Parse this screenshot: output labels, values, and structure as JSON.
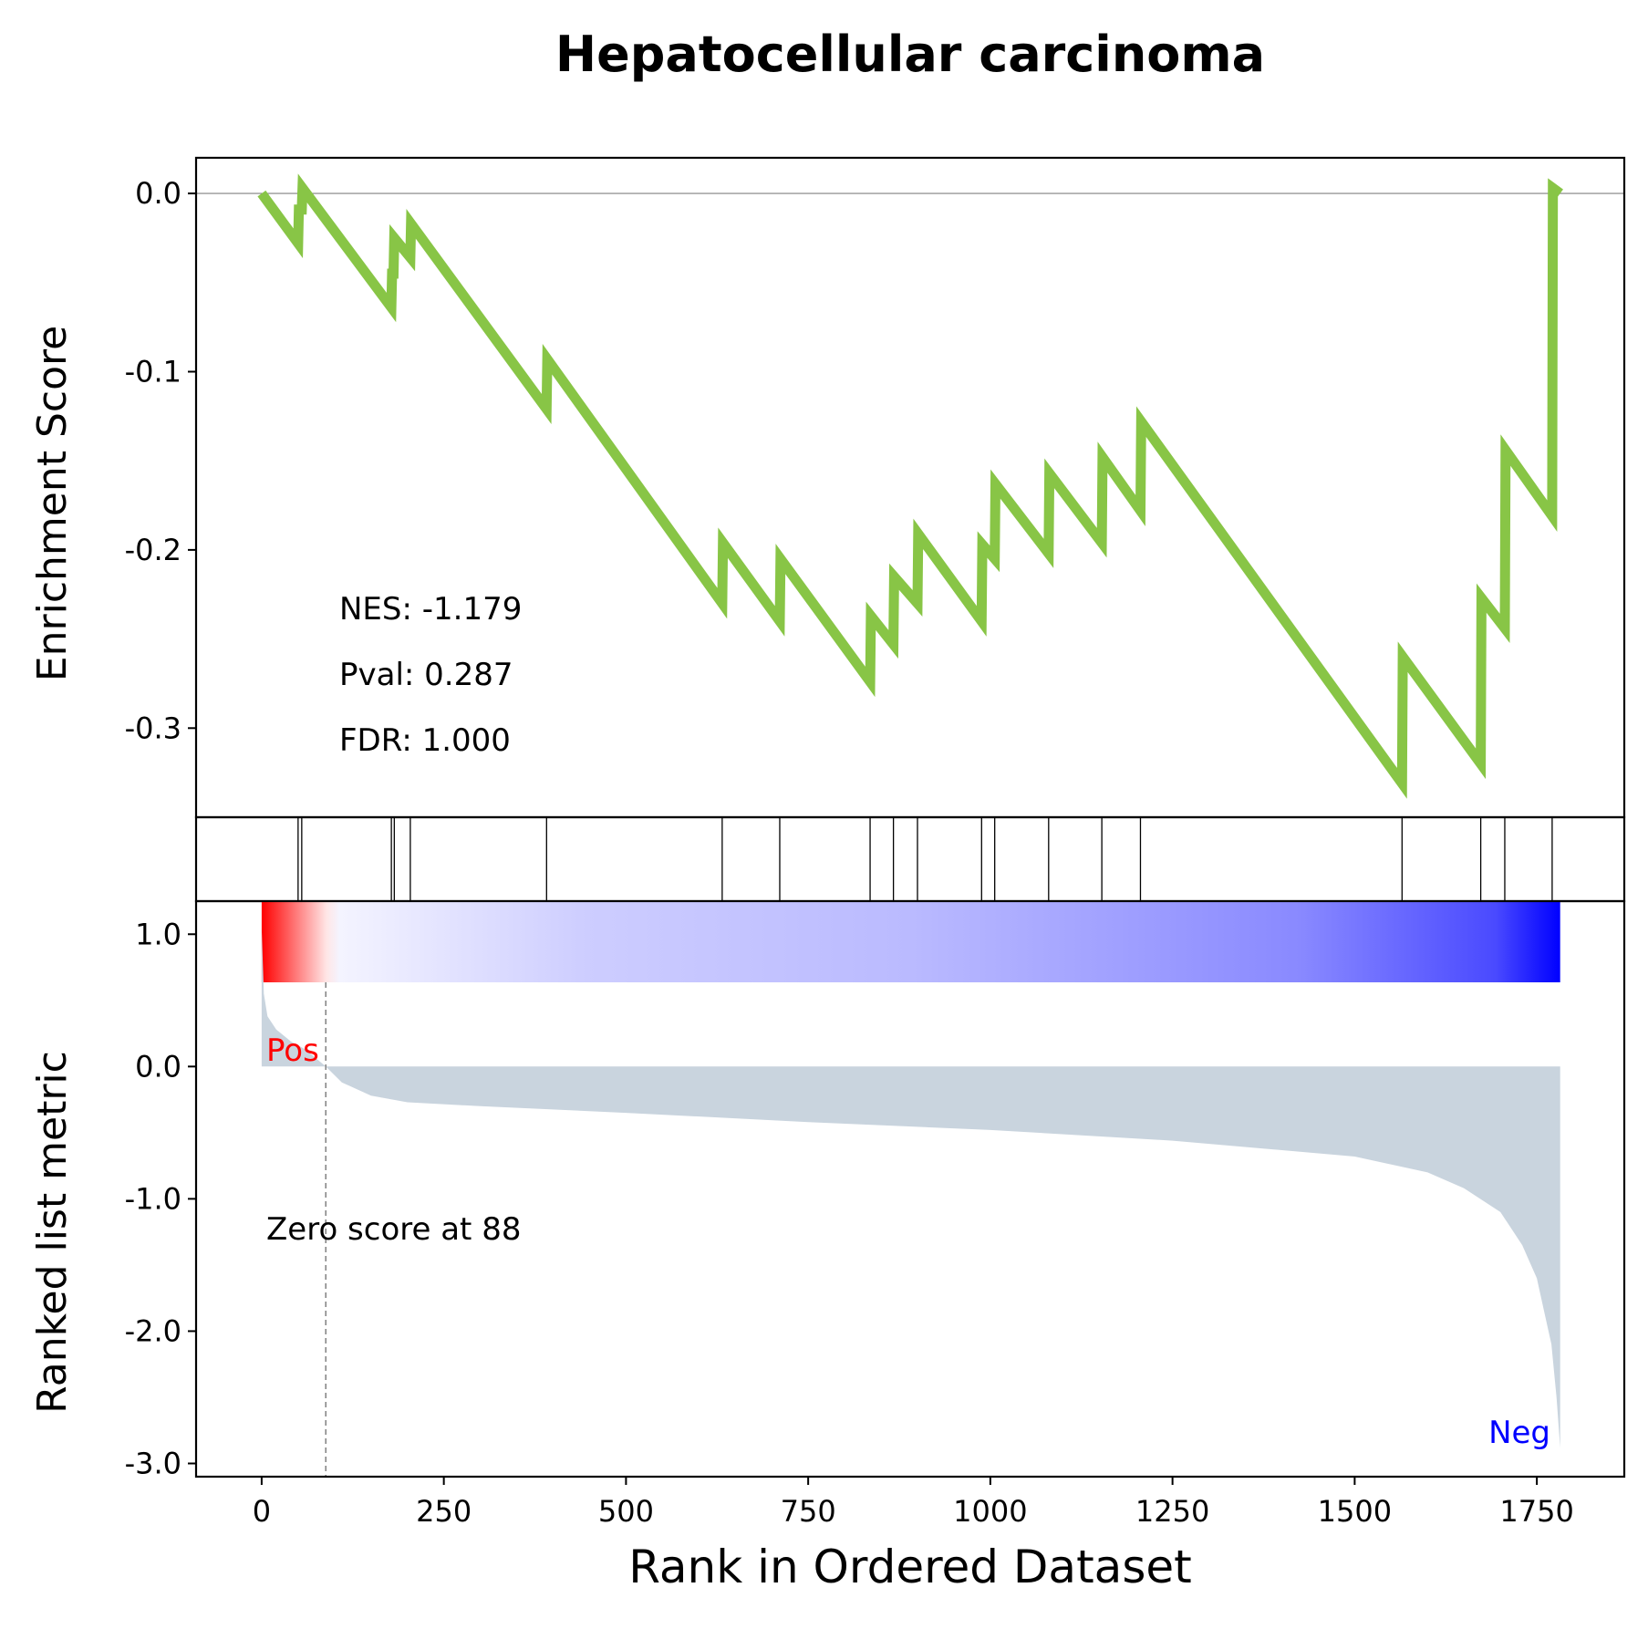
{
  "title": "Hepatocellular carcinoma",
  "colors": {
    "es_line": "#88c546",
    "ranked_fill": "#c9d4de",
    "pos_label": "#ff0000",
    "neg_label": "#0000ff",
    "heat_pos": "#ff0000",
    "heat_neg": "#0000ff"
  },
  "chart_data": {
    "type": "line",
    "n_genes": 1783,
    "enrichment": {
      "ylabel": "Enrichment Score",
      "ylim": [
        -0.35,
        0.02
      ],
      "yticks": [
        0.0,
        -0.1,
        -0.2,
        -0.3
      ],
      "ytick_labels": [
        "0.0",
        "-0.1",
        "-0.2",
        "-0.3"
      ],
      "stats": [
        "NES: -1.179",
        "Pval: 0.287",
        "FDR: 1.000"
      ],
      "points": [
        [
          0,
          0.0
        ],
        [
          50,
          -0.028
        ],
        [
          51,
          -0.009
        ],
        [
          55,
          -0.009
        ],
        [
          56,
          0.003
        ],
        [
          178,
          -0.064
        ],
        [
          179,
          -0.045
        ],
        [
          181,
          -0.045
        ],
        [
          182,
          -0.025
        ],
        [
          204,
          -0.036
        ],
        [
          205,
          -0.017
        ],
        [
          391,
          -0.121
        ],
        [
          392,
          -0.093
        ],
        [
          632,
          -0.23
        ],
        [
          633,
          -0.196
        ],
        [
          711,
          -0.24
        ],
        [
          712,
          -0.205
        ],
        [
          835,
          -0.274
        ],
        [
          836,
          -0.237
        ],
        [
          867,
          -0.253
        ],
        [
          868,
          -0.215
        ],
        [
          900,
          -0.23
        ],
        [
          901,
          -0.191
        ],
        [
          988,
          -0.24
        ],
        [
          989,
          -0.197
        ],
        [
          1006,
          -0.205
        ],
        [
          1007,
          -0.163
        ],
        [
          1080,
          -0.202
        ],
        [
          1081,
          -0.157
        ],
        [
          1153,
          -0.196
        ],
        [
          1154,
          -0.148
        ],
        [
          1206,
          -0.178
        ],
        [
          1207,
          -0.128
        ],
        [
          1565,
          -0.331
        ],
        [
          1566,
          -0.26
        ],
        [
          1673,
          -0.32
        ],
        [
          1674,
          -0.227
        ],
        [
          1706,
          -0.244
        ],
        [
          1707,
          -0.144
        ],
        [
          1771,
          -0.181
        ],
        [
          1772,
          0.003
        ],
        [
          1782,
          0.0
        ]
      ]
    },
    "hits": [
      50,
      55,
      178,
      182,
      204,
      391,
      632,
      711,
      835,
      867,
      900,
      988,
      1006,
      1080,
      1153,
      1206,
      1565,
      1673,
      1706,
      1771
    ],
    "ranked_metric": {
      "ylabel": "Ranked list metric",
      "ylim": [
        -3.1,
        1.25
      ],
      "yticks": [
        1.0,
        0.0,
        -1.0,
        -2.0,
        -3.0
      ],
      "ytick_labels": [
        "1.0",
        "0.0",
        "-1.0",
        "-2.0",
        "-3.0"
      ],
      "zero_score_rank": 88,
      "zero_score_label": "Zero score at 88",
      "pos_label": "Pos",
      "neg_label": "Neg",
      "points": [
        [
          0,
          1.05
        ],
        [
          3,
          0.55
        ],
        [
          8,
          0.38
        ],
        [
          20,
          0.28
        ],
        [
          40,
          0.19
        ],
        [
          60,
          0.13
        ],
        [
          88,
          0.0
        ],
        [
          110,
          -0.12
        ],
        [
          150,
          -0.22
        ],
        [
          200,
          -0.27
        ],
        [
          300,
          -0.3
        ],
        [
          500,
          -0.35
        ],
        [
          750,
          -0.42
        ],
        [
          1000,
          -0.48
        ],
        [
          1250,
          -0.56
        ],
        [
          1500,
          -0.68
        ],
        [
          1600,
          -0.8
        ],
        [
          1650,
          -0.92
        ],
        [
          1700,
          -1.1
        ],
        [
          1730,
          -1.35
        ],
        [
          1750,
          -1.6
        ],
        [
          1760,
          -1.85
        ],
        [
          1770,
          -2.1
        ],
        [
          1777,
          -2.5
        ],
        [
          1782,
          -2.88
        ]
      ]
    },
    "xaxis": {
      "xlabel": "Rank in Ordered Dataset",
      "xlim": [
        -90,
        1870
      ],
      "xticks": [
        0,
        250,
        500,
        750,
        1000,
        1250,
        1500,
        1750
      ],
      "xtick_labels": [
        "0",
        "250",
        "500",
        "750",
        "1000",
        "1250",
        "1500",
        "1750"
      ]
    }
  }
}
